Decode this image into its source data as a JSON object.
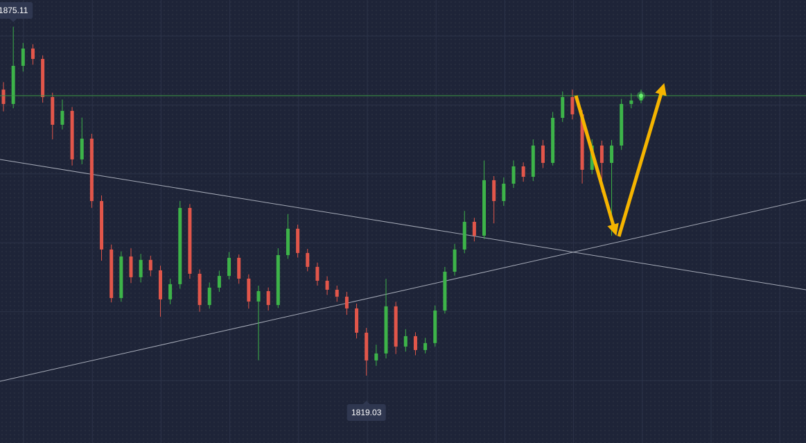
{
  "chart_data": {
    "type": "candlestick",
    "open": [
      1865.0,
      1862.69,
      1868.82,
      1871.6,
      1869.93,
      1863.8,
      1859.35,
      1861.58,
      1853.78,
      1857.12,
      1847.09,
      1839.3,
      1831.5,
      1838.18,
      1834.84,
      1837.63,
      1835.95,
      1831.28,
      1833.73,
      1845.98,
      1835.4,
      1830.38,
      1833.17,
      1835.06,
      1837.96,
      1834.62,
      1830.94,
      1832.61,
      1830.38,
      1838.4,
      1842.64,
      1838.74,
      1836.51,
      1834.28,
      1832.83,
      1831.72,
      1829.83,
      1825.93,
      1821.47,
      1822.59,
      1830.16,
      1823.7,
      1825.37,
      1823.14,
      1824.26,
      1829.49,
      1835.73,
      1839.3,
      1843.75,
      1841.52,
      1850.44,
      1847.09,
      1849.88,
      1852.66,
      1850.99,
      1856.01,
      1853.22,
      1860.46,
      1863.8,
      1861.02,
      1852.11,
      1856.01,
      1853.22,
      1856.01,
      1862.69,
      1863.25
    ],
    "high": [
      1866.2,
      1875.11,
      1872.5,
      1872.3,
      1870.5,
      1864.5,
      1863.4,
      1862.2,
      1860.5,
      1857.9,
      1848.0,
      1840.1,
      1839.0,
      1839.5,
      1838.6,
      1838.3,
      1836.7,
      1834.6,
      1847.1,
      1846.6,
      1836.1,
      1834.0,
      1835.9,
      1838.9,
      1838.5,
      1835.3,
      1833.5,
      1833.2,
      1839.5,
      1845.0,
      1843.3,
      1839.4,
      1837.2,
      1835.0,
      1833.5,
      1832.5,
      1830.6,
      1826.7,
      1824.0,
      1834.6,
      1830.9,
      1826.5,
      1826.0,
      1825.1,
      1830.3,
      1836.5,
      1840.2,
      1845.5,
      1844.4,
      1853.6,
      1851.1,
      1850.9,
      1853.6,
      1853.3,
      1857.0,
      1856.9,
      1861.4,
      1864.7,
      1865.0,
      1861.7,
      1857.0,
      1856.8,
      1856.9,
      1863.5,
      1864.4,
      1865.0
    ],
    "low": [
      1861.5,
      1862.0,
      1867.9,
      1869.0,
      1862.9,
      1857.0,
      1858.6,
      1852.8,
      1853.0,
      1846.0,
      1837.5,
      1830.8,
      1830.9,
      1833.9,
      1834.0,
      1835.0,
      1828.5,
      1830.5,
      1833.0,
      1834.6,
      1829.3,
      1829.8,
      1832.5,
      1834.5,
      1833.8,
      1829.8,
      1821.5,
      1829.5,
      1829.9,
      1837.8,
      1838.0,
      1835.8,
      1833.5,
      1832.0,
      1830.9,
      1828.8,
      1825.0,
      1819.03,
      1820.6,
      1821.8,
      1822.5,
      1822.9,
      1822.3,
      1822.6,
      1823.7,
      1829.0,
      1835.1,
      1838.7,
      1840.6,
      1841.0,
      1843.5,
      1846.3,
      1849.2,
      1850.2,
      1850.3,
      1852.4,
      1852.8,
      1859.8,
      1860.2,
      1849.9,
      1851.4,
      1848.5,
      1841.5,
      1855.3,
      1862.0,
      1862.8
    ],
    "close": [
      1862.69,
      1868.82,
      1871.6,
      1869.93,
      1863.8,
      1859.35,
      1861.58,
      1853.78,
      1857.12,
      1847.09,
      1839.3,
      1831.5,
      1838.18,
      1834.84,
      1837.63,
      1835.95,
      1831.28,
      1833.73,
      1845.98,
      1835.4,
      1830.38,
      1833.17,
      1835.06,
      1837.96,
      1834.62,
      1830.94,
      1832.61,
      1830.38,
      1838.4,
      1842.64,
      1838.74,
      1836.51,
      1834.28,
      1832.83,
      1831.72,
      1829.83,
      1825.93,
      1821.47,
      1822.59,
      1830.16,
      1823.7,
      1825.37,
      1823.14,
      1824.26,
      1829.49,
      1835.73,
      1839.3,
      1843.75,
      1841.52,
      1850.44,
      1847.09,
      1849.88,
      1852.66,
      1850.99,
      1856.01,
      1853.22,
      1860.46,
      1863.8,
      1861.02,
      1852.11,
      1856.01,
      1853.22,
      1856.01,
      1862.69,
      1863.25,
      1864.03
    ],
    "up_color": "#3db449",
    "down_color": "#e2564a",
    "ylim": [
      1808.2,
      1879.4
    ]
  }
}
